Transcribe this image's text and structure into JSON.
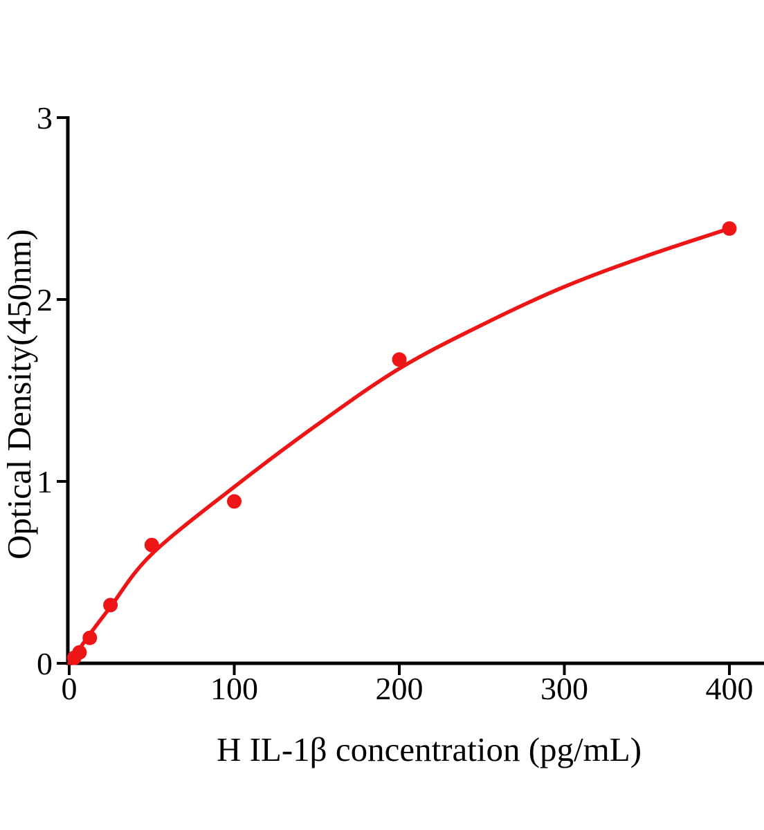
{
  "figure": {
    "background": "#ffffff"
  },
  "chart_data": {
    "type": "scatter",
    "title": "",
    "xlabel": "H IL-1β concentration (pg/mL)",
    "ylabel": "Optical Density(450nm)",
    "xlim": [
      0,
      421
    ],
    "ylim": [
      0,
      3
    ],
    "xticks": [
      0,
      100,
      200,
      300,
      400
    ],
    "yticks": [
      0,
      1,
      2,
      3
    ],
    "grid": false,
    "legend": false,
    "series": [
      {
        "marker": "circle",
        "color": "#ed1515",
        "points": [
          {
            "x": 3,
            "y": 0.03
          },
          {
            "x": 6.25,
            "y": 0.06
          },
          {
            "x": 12.5,
            "y": 0.14
          },
          {
            "x": 25,
            "y": 0.32
          },
          {
            "x": 50,
            "y": 0.65
          },
          {
            "x": 100,
            "y": 0.89
          },
          {
            "x": 200,
            "y": 1.67
          },
          {
            "x": 400,
            "y": 2.39
          }
        ],
        "fit_curve": [
          {
            "x": 0,
            "y": 0.0
          },
          {
            "x": 12.5,
            "y": 0.16
          },
          {
            "x": 25,
            "y": 0.31
          },
          {
            "x": 50,
            "y": 0.6
          },
          {
            "x": 100,
            "y": 0.97
          },
          {
            "x": 150,
            "y": 1.31
          },
          {
            "x": 200,
            "y": 1.62
          },
          {
            "x": 250,
            "y": 1.86
          },
          {
            "x": 300,
            "y": 2.07
          },
          {
            "x": 350,
            "y": 2.24
          },
          {
            "x": 400,
            "y": 2.39
          }
        ]
      }
    ],
    "colors": {
      "series": "#ed1515",
      "axis": "#000000",
      "text": "#000000"
    }
  }
}
